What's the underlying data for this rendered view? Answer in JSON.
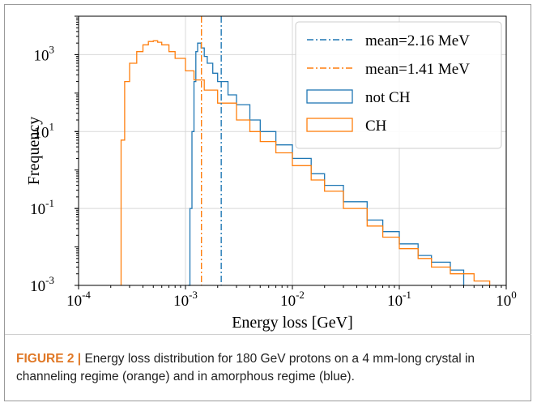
{
  "chart_data": {
    "type": "line",
    "title": "",
    "xlabel": "Energy loss [GeV]",
    "ylabel": "Frequency",
    "xscale": "log",
    "yscale": "log",
    "xlim": [
      0.0001,
      1
    ],
    "ylim": [
      0.001,
      10000
    ],
    "x_ticks": [
      0.0001,
      0.001,
      0.01,
      0.1,
      1
    ],
    "x_tick_labels": [
      [
        "10",
        "-4"
      ],
      [
        "10",
        "-3"
      ],
      [
        "10",
        "-2"
      ],
      [
        "10",
        "-1"
      ],
      [
        "10",
        "0"
      ]
    ],
    "y_ticks": [
      0.001,
      0.1,
      10,
      1000
    ],
    "y_tick_labels": [
      [
        "10",
        "-3"
      ],
      [
        "10",
        "-1"
      ],
      [
        "10",
        "1"
      ],
      [
        "10",
        "3"
      ]
    ],
    "grid": true,
    "legend_position": "top-right",
    "legend": [
      {
        "label": "mean=2.16 MeV",
        "style": "dashdot",
        "color": "#1f77b4"
      },
      {
        "label": "mean=1.41 MeV",
        "style": "dashdot",
        "color": "#ff7f0e"
      },
      {
        "label": "not CH",
        "style": "step",
        "color": "#1f77b4"
      },
      {
        "label": "CH",
        "style": "step",
        "color": "#ff7f0e"
      }
    ],
    "vlines": [
      {
        "x": 0.00216,
        "color": "#1f77b4"
      },
      {
        "x": 0.00141,
        "color": "#ff7f0e"
      }
    ],
    "series": [
      {
        "name": "not CH",
        "color": "#1f77b4",
        "x": [
          0.00105,
          0.0011,
          0.00115,
          0.0012,
          0.00125,
          0.0013,
          0.0014,
          0.0015,
          0.0016,
          0.0018,
          0.002,
          0.0025,
          0.003,
          0.004,
          0.005,
          0.007,
          0.01,
          0.015,
          0.02,
          0.03,
          0.05,
          0.07,
          0.1,
          0.15,
          0.2,
          0.3,
          0.4
        ],
        "y": [
          0.001,
          0.1,
          10,
          200,
          1200,
          2000,
          1500,
          900,
          600,
          330,
          200,
          90,
          50,
          20,
          10,
          4.5,
          2,
          0.8,
          0.4,
          0.15,
          0.05,
          0.025,
          0.012,
          0.006,
          0.004,
          0.0025,
          0.0018
        ]
      },
      {
        "name": "CH",
        "color": "#ff7f0e",
        "x": [
          0.00025,
          0.00027,
          0.0003,
          0.00035,
          0.0004,
          0.00045,
          0.0005,
          0.00055,
          0.0006,
          0.0007,
          0.0008,
          0.001,
          0.0012,
          0.0015,
          0.002,
          0.003,
          0.004,
          0.005,
          0.007,
          0.01,
          0.015,
          0.02,
          0.03,
          0.05,
          0.07,
          0.1,
          0.15,
          0.2,
          0.3,
          0.5,
          0.7
        ],
        "y": [
          6,
          200,
          600,
          1200,
          1800,
          2200,
          2300,
          2100,
          1800,
          1200,
          800,
          380,
          220,
          120,
          55,
          20,
          10,
          5.5,
          2.8,
          1.3,
          0.55,
          0.28,
          0.1,
          0.035,
          0.018,
          0.009,
          0.005,
          0.003,
          0.002,
          0.0013,
          0.0012
        ]
      }
    ]
  },
  "caption": {
    "label": "FIGURE 2 |",
    "text": " Energy loss distribution for 180 GeV protons on a 4 mm-long crystal in channeling regime (orange) and in amorphous regime (blue)."
  }
}
